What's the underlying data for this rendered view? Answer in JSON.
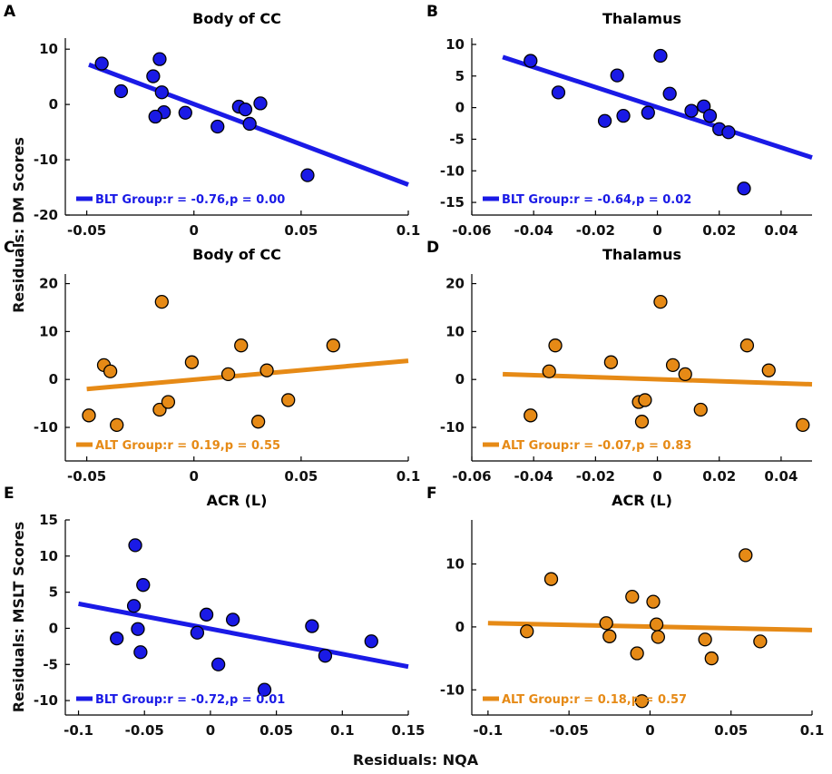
{
  "figure": {
    "ylabel_top": "Residuals: DM Scores",
    "ylabel_bottom": "Residuals: MSLT Scores",
    "xlabel": "Residuals: NQA"
  },
  "colors": {
    "blt": "#1a1ae6",
    "alt": "#e68a16",
    "axis": "#000000"
  },
  "chart_data": [
    {
      "id": "A",
      "type": "scatter",
      "title": "Body of CC",
      "group": "blt",
      "legend": "BLT Group:r = -0.76,p = 0.00",
      "xlim": [
        -0.06,
        0.1
      ],
      "ylim": [
        -20,
        12
      ],
      "xticks": [
        -0.05,
        0,
        0.05,
        0.1
      ],
      "xtick_labels": [
        "-0.05",
        "0",
        "0.05",
        "0.1"
      ],
      "yticks": [
        10,
        0,
        -10,
        -20
      ],
      "ytick_labels": [
        "10",
        "0",
        "-10",
        "-20"
      ],
      "fit": {
        "x": [
          -0.049,
          0.1
        ],
        "y": [
          7.2,
          -14.5
        ]
      },
      "points": [
        [
          -0.043,
          7.4
        ],
        [
          -0.034,
          2.4
        ],
        [
          -0.019,
          5.1
        ],
        [
          -0.016,
          8.2
        ],
        [
          -0.015,
          2.2
        ],
        [
          -0.014,
          -1.4
        ],
        [
          -0.018,
          -2.2
        ],
        [
          -0.004,
          -1.5
        ],
        [
          0.011,
          -4.0
        ],
        [
          0.021,
          -0.4
        ],
        [
          0.024,
          -0.9
        ],
        [
          0.026,
          -3.5
        ],
        [
          0.031,
          0.2
        ],
        [
          0.053,
          -12.8
        ]
      ]
    },
    {
      "id": "B",
      "type": "scatter",
      "title": "Thalamus",
      "group": "blt",
      "legend": "BLT Group:r = -0.64,p = 0.02",
      "xlim": [
        -0.06,
        0.05
      ],
      "ylim": [
        -17,
        11
      ],
      "xticks": [
        -0.06,
        -0.04,
        -0.02,
        0,
        0.02,
        0.04
      ],
      "xtick_labels": [
        "-0.06",
        "-0.04",
        "-0.02",
        "0",
        "0.02",
        "0.04"
      ],
      "yticks": [
        10,
        5,
        0,
        -5,
        -10,
        -15
      ],
      "ytick_labels": [
        "10",
        "5",
        "0",
        "-5",
        "-10",
        "-15"
      ],
      "fit": {
        "x": [
          -0.05,
          0.05
        ],
        "y": [
          8.0,
          -7.9
        ]
      },
      "points": [
        [
          -0.041,
          7.4
        ],
        [
          -0.032,
          2.4
        ],
        [
          -0.013,
          5.1
        ],
        [
          0.001,
          8.2
        ],
        [
          0.004,
          2.2
        ],
        [
          -0.017,
          -2.1
        ],
        [
          -0.011,
          -1.3
        ],
        [
          -0.003,
          -0.8
        ],
        [
          0.011,
          -0.5
        ],
        [
          0.015,
          0.2
        ],
        [
          0.017,
          -1.3
        ],
        [
          0.02,
          -3.4
        ],
        [
          0.023,
          -3.9
        ],
        [
          0.028,
          -12.8
        ]
      ]
    },
    {
      "id": "C",
      "type": "scatter",
      "title": "Body of CC",
      "group": "alt",
      "legend": "ALT Group:r = 0.19,p = 0.55",
      "xlim": [
        -0.06,
        0.1
      ],
      "ylim": [
        -17,
        22
      ],
      "xticks": [
        -0.05,
        0,
        0.05,
        0.1
      ],
      "xtick_labels": [
        "-0.05",
        "0",
        "0.05",
        "0.1"
      ],
      "yticks": [
        20,
        10,
        0,
        -10
      ],
      "ytick_labels": [
        "20",
        "10",
        "0",
        "-10"
      ],
      "fit": {
        "x": [
          -0.05,
          0.1
        ],
        "y": [
          -2.0,
          3.9
        ]
      },
      "points": [
        [
          -0.049,
          -7.5
        ],
        [
          -0.042,
          3.0
        ],
        [
          -0.039,
          1.7
        ],
        [
          -0.036,
          -9.5
        ],
        [
          -0.015,
          16.2
        ],
        [
          -0.016,
          -6.3
        ],
        [
          -0.012,
          -4.7
        ],
        [
          -0.001,
          3.6
        ],
        [
          0.016,
          1.1
        ],
        [
          0.022,
          7.1
        ],
        [
          0.03,
          -8.8
        ],
        [
          0.034,
          1.9
        ],
        [
          0.044,
          -4.3
        ],
        [
          0.065,
          7.1
        ]
      ]
    },
    {
      "id": "D",
      "type": "scatter",
      "title": "Thalamus",
      "group": "alt",
      "legend": "ALT Group:r = -0.07,p = 0.83",
      "xlim": [
        -0.06,
        0.05
      ],
      "ylim": [
        -17,
        22
      ],
      "xticks": [
        -0.06,
        -0.04,
        -0.02,
        0,
        0.02,
        0.04
      ],
      "xtick_labels": [
        "-0.06",
        "-0.04",
        "-0.02",
        "0",
        "0.02",
        "0.04"
      ],
      "yticks": [
        20,
        10,
        0,
        -10
      ],
      "ytick_labels": [
        "20",
        "10",
        "0",
        "-10"
      ],
      "fit": {
        "x": [
          -0.05,
          0.05
        ],
        "y": [
          1.1,
          -1.0
        ]
      },
      "points": [
        [
          -0.041,
          -7.5
        ],
        [
          -0.035,
          1.7
        ],
        [
          -0.033,
          7.1
        ],
        [
          -0.015,
          3.6
        ],
        [
          -0.006,
          -4.7
        ],
        [
          -0.004,
          -4.3
        ],
        [
          -0.005,
          -8.8
        ],
        [
          0.001,
          16.2
        ],
        [
          0.005,
          3.0
        ],
        [
          0.009,
          1.1
        ],
        [
          0.014,
          -6.3
        ],
        [
          0.029,
          7.1
        ],
        [
          0.036,
          1.9
        ],
        [
          0.047,
          -9.5
        ]
      ]
    },
    {
      "id": "E",
      "type": "scatter",
      "title": "ACR (L)",
      "group": "blt",
      "legend": "BLT Group:r = -0.72,p = 0.01",
      "xlim": [
        -0.11,
        0.15
      ],
      "ylim": [
        -12,
        15
      ],
      "xticks": [
        -0.1,
        -0.05,
        0,
        0.05,
        0.1,
        0.15
      ],
      "xtick_labels": [
        "-0.1",
        "-0.05",
        "0",
        "0.05",
        "0.1",
        "0.15"
      ],
      "yticks": [
        15,
        10,
        5,
        0,
        -5,
        -10
      ],
      "ytick_labels": [
        "15",
        "10",
        "5",
        "0",
        "-5",
        "-10"
      ],
      "fit": {
        "x": [
          -0.1,
          0.15
        ],
        "y": [
          3.4,
          -5.3
        ]
      },
      "points": [
        [
          -0.057,
          11.5
        ],
        [
          -0.051,
          6.0
        ],
        [
          -0.058,
          3.1
        ],
        [
          -0.055,
          -0.1
        ],
        [
          -0.053,
          -3.3
        ],
        [
          -0.071,
          -1.4
        ],
        [
          -0.01,
          -0.6
        ],
        [
          -0.003,
          1.9
        ],
        [
          0.017,
          1.2
        ],
        [
          0.006,
          -5.0
        ],
        [
          0.041,
          -8.5
        ],
        [
          0.077,
          0.3
        ],
        [
          0.087,
          -3.8
        ],
        [
          0.122,
          -1.8
        ]
      ]
    },
    {
      "id": "F",
      "type": "scatter",
      "title": "ACR (L)",
      "group": "alt",
      "legend": "ALT Group:r = 0.18,p = 0.57",
      "xlim": [
        -0.11,
        0.1
      ],
      "ylim": [
        -14,
        17
      ],
      "xticks": [
        -0.1,
        -0.05,
        0,
        0.05,
        0.1
      ],
      "xtick_labels": [
        "-0.1",
        "-0.05",
        "0",
        "0.05",
        "0.1"
      ],
      "yticks": [
        10,
        0,
        -10
      ],
      "ytick_labels": [
        "10",
        "0",
        "-10"
      ],
      "fit": {
        "x": [
          -0.1,
          0.1
        ],
        "y": [
          0.6,
          -0.5
        ]
      },
      "points": [
        [
          -0.076,
          -0.7
        ],
        [
          -0.061,
          7.6
        ],
        [
          -0.027,
          0.6
        ],
        [
          -0.025,
          -1.5
        ],
        [
          -0.011,
          4.8
        ],
        [
          -0.008,
          -4.2
        ],
        [
          -0.005,
          -11.8
        ],
        [
          0.002,
          4.0
        ],
        [
          0.004,
          0.4
        ],
        [
          0.005,
          -1.6
        ],
        [
          0.034,
          -2.0
        ],
        [
          0.038,
          -5.0
        ],
        [
          0.059,
          11.4
        ],
        [
          0.068,
          -2.3
        ]
      ]
    }
  ]
}
